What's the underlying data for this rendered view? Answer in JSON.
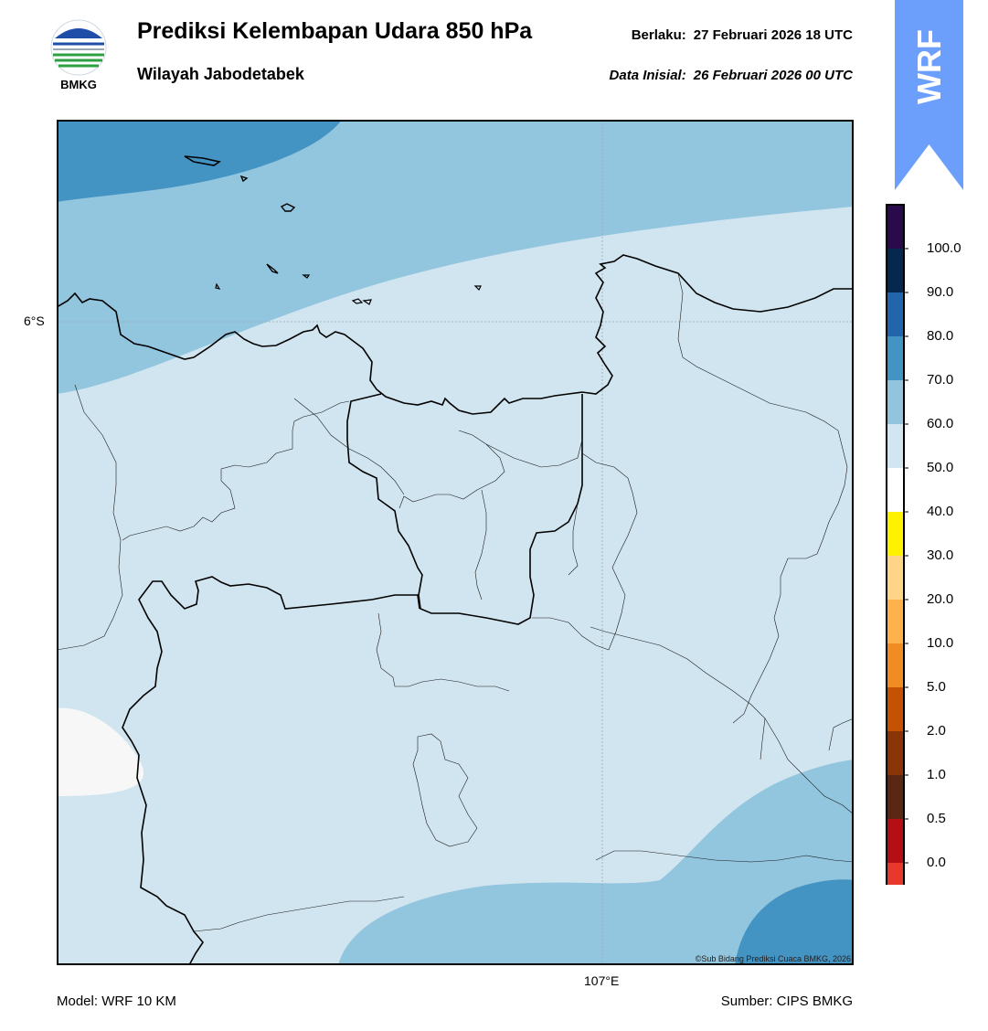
{
  "header": {
    "title": "Prediksi Kelembapan Udara 850 hPa",
    "region": "Wilayah Jabodetabek",
    "valid_label": "Berlaku:",
    "valid_time": "27 Februari 2026 18 UTC",
    "init_label": "Data Inisial:",
    "init_time": "26 Februari 2026 00 UTC"
  },
  "logo": {
    "text": "BMKG",
    "icon": "bmkg-logo"
  },
  "badge": {
    "text": "WRF",
    "color": "#6b9ffb"
  },
  "map": {
    "lat_label": "6°S",
    "lon_label": "107°E",
    "credit": "©Sub Bidang Prediksi Cuaca BMKG, 2026"
  },
  "footer": {
    "model": "Model: WRF 10 KM",
    "source": "Sumber: CIPS BMKG"
  },
  "colorbar": {
    "ticks": [
      "0.0",
      "0.5",
      "1.0",
      "2.0",
      "5.0",
      "10.0",
      "20.0",
      "30.0",
      "40.0",
      "50.0",
      "60.0",
      "70.0",
      "80.0",
      "90.0",
      "100.0"
    ],
    "colors_bottom_to_top": [
      "#e8372b",
      "#b30f14",
      "#5a2812",
      "#8a3508",
      "#c45104",
      "#f08c24",
      "#fdb24b",
      "#fed588",
      "#fff200",
      "#ffffff",
      "#d1e6f1",
      "#92c4de",
      "#4393c3",
      "#2166ac",
      "#07284e",
      "#2a0a4a"
    ]
  },
  "humidity_colors": {
    "50_60": "#f7f7f7",
    "60_70": "#d1e5f0",
    "70_80": "#92c5de",
    "80_90": "#4393c3"
  }
}
